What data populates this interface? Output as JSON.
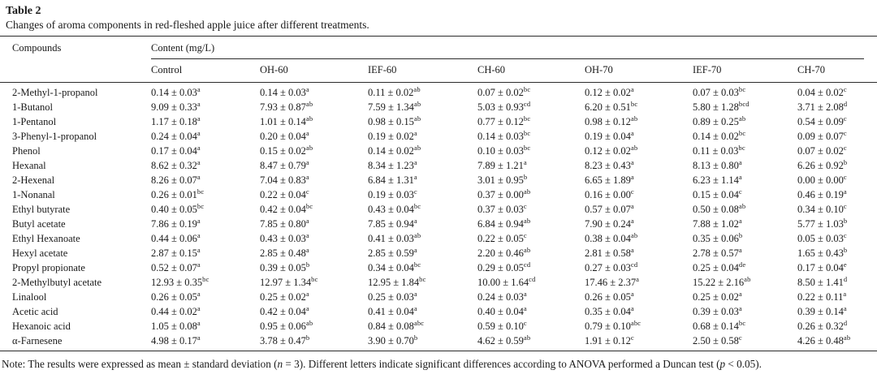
{
  "table": {
    "label": "Table 2",
    "caption": "Changes of aroma components in red-fleshed apple juice after different treatments.",
    "compounds_header": "Compounds",
    "content_header": "Content (mg/L)",
    "columns": [
      "Control",
      "OH-60",
      "IEF-60",
      "CH-60",
      "OH-70",
      "IEF-70",
      "CH-70"
    ],
    "rows": [
      {
        "compound": "2-Methyl-1-propanol",
        "cells": [
          {
            "text": "0.14 ± 0.03",
            "sup": "a"
          },
          {
            "text": "0.14 ± 0.03",
            "sup": "a"
          },
          {
            "text": "0.11 ± 0.02",
            "sup": "ab"
          },
          {
            "text": "0.07 ± 0.02",
            "sup": "bc"
          },
          {
            "text": "0.12 ± 0.02",
            "sup": "a"
          },
          {
            "text": "0.07 ± 0.03",
            "sup": "bc"
          },
          {
            "text": "0.04 ± 0.02",
            "sup": "c"
          }
        ]
      },
      {
        "compound": "1-Butanol",
        "cells": [
          {
            "text": "9.09 ± 0.33",
            "sup": "a"
          },
          {
            "text": "7.93 ± 0.87",
            "sup": "ab"
          },
          {
            "text": "7.59 ± 1.34",
            "sup": "ab"
          },
          {
            "text": "5.03 ± 0.93",
            "sup": "cd"
          },
          {
            "text": "6.20 ± 0.51",
            "sup": "bc"
          },
          {
            "text": "5.80 ± 1.28",
            "sup": "bcd"
          },
          {
            "text": "3.71 ± 2.08",
            "sup": "d"
          }
        ]
      },
      {
        "compound": "1-Pentanol",
        "cells": [
          {
            "text": "1.17 ± 0.18",
            "sup": "a"
          },
          {
            "text": "1.01 ± 0.14",
            "sup": "ab"
          },
          {
            "text": "0.98 ± 0.15",
            "sup": "ab"
          },
          {
            "text": "0.77 ± 0.12",
            "sup": "bc"
          },
          {
            "text": "0.98 ± 0.12",
            "sup": "ab"
          },
          {
            "text": "0.89 ± 0.25",
            "sup": "ab"
          },
          {
            "text": "0.54 ± 0.09",
            "sup": "c"
          }
        ]
      },
      {
        "compound": "3-Phenyl-1-propanol",
        "cells": [
          {
            "text": "0.24 ± 0.04",
            "sup": "a"
          },
          {
            "text": "0.20 ± 0.04",
            "sup": "a"
          },
          {
            "text": "0.19 ± 0.02",
            "sup": "a"
          },
          {
            "text": "0.14 ± 0.03",
            "sup": "bc"
          },
          {
            "text": "0.19 ± 0.04",
            "sup": "a"
          },
          {
            "text": "0.14 ± 0.02",
            "sup": "bc"
          },
          {
            "text": "0.09 ± 0.07",
            "sup": "c"
          }
        ]
      },
      {
        "compound": "Phenol",
        "cells": [
          {
            "text": "0.17 ± 0.04",
            "sup": "a"
          },
          {
            "text": "0.15 ± 0.02",
            "sup": "ab"
          },
          {
            "text": "0.14 ± 0.02",
            "sup": "ab"
          },
          {
            "text": "0.10 ± 0.03",
            "sup": "bc"
          },
          {
            "text": "0.12 ± 0.02",
            "sup": "ab"
          },
          {
            "text": "0.11 ± 0.03",
            "sup": "bc"
          },
          {
            "text": "0.07 ± 0.02",
            "sup": "c"
          }
        ]
      },
      {
        "compound": "Hexanal",
        "cells": [
          {
            "text": "8.62 ± 0.32",
            "sup": "a"
          },
          {
            "text": "8.47 ± 0.79",
            "sup": "a"
          },
          {
            "text": "8.34 ± 1.23",
            "sup": "a"
          },
          {
            "text": "7.89 ± 1.21",
            "sup": "a"
          },
          {
            "text": "8.23 ± 0.43",
            "sup": "a"
          },
          {
            "text": "8.13 ± 0.80",
            "sup": "a"
          },
          {
            "text": "6.26 ± 0.92",
            "sup": "b"
          }
        ]
      },
      {
        "compound": "2-Hexenal",
        "cells": [
          {
            "text": "8.26 ± 0.07",
            "sup": "a"
          },
          {
            "text": "7.04 ± 0.83",
            "sup": "a"
          },
          {
            "text": "6.84 ± 1.31",
            "sup": "a"
          },
          {
            "text": "3.01 ± 0.95",
            "sup": "b"
          },
          {
            "text": "6.65 ± 1.89",
            "sup": "a"
          },
          {
            "text": "6.23 ± 1.14",
            "sup": "a"
          },
          {
            "text": "0.00 ± 0.00",
            "sup": "c"
          }
        ]
      },
      {
        "compound": "1-Nonanal",
        "cells": [
          {
            "text": "0.26 ± 0.01",
            "sup": "bc"
          },
          {
            "text": "0.22 ± 0.04",
            "sup": "c"
          },
          {
            "text": "0.19 ± 0.03",
            "sup": "c"
          },
          {
            "text": "0.37 ± 0.00",
            "sup": "ab"
          },
          {
            "text": "0.16 ± 0.00",
            "sup": "c"
          },
          {
            "text": "0.15 ± 0.04",
            "sup": "c"
          },
          {
            "text": "0.46 ± 0.19",
            "sup": "a"
          }
        ]
      },
      {
        "compound": "Ethyl butyrate",
        "cells": [
          {
            "text": "0.40 ± 0.05",
            "sup": "bc"
          },
          {
            "text": "0.42 ± 0.04",
            "sup": "bc"
          },
          {
            "text": "0.43 ± 0.04",
            "sup": "bc"
          },
          {
            "text": "0.37 ± 0.03",
            "sup": "c"
          },
          {
            "text": "0.57 ± 0.07",
            "sup": "a"
          },
          {
            "text": "0.50 ± 0.08",
            "sup": "ab"
          },
          {
            "text": "0.34 ± 0.10",
            "sup": "c"
          }
        ]
      },
      {
        "compound": "Butyl acetate",
        "cells": [
          {
            "text": "7.86 ± 0.19",
            "sup": "a"
          },
          {
            "text": "7.85 ± 0.80",
            "sup": "a"
          },
          {
            "text": "7.85 ± 0.94",
            "sup": "a"
          },
          {
            "text": "6.84 ± 0.94",
            "sup": "ab"
          },
          {
            "text": "7.90 ± 0.24",
            "sup": "a"
          },
          {
            "text": "7.88 ± 1.02",
            "sup": "a"
          },
          {
            "text": "5.77 ± 1.03",
            "sup": "b"
          }
        ]
      },
      {
        "compound": "Ethyl Hexanoate",
        "cells": [
          {
            "text": "0.44 ± 0.06",
            "sup": "a"
          },
          {
            "text": "0.43 ± 0.03",
            "sup": "a"
          },
          {
            "text": "0.41 ± 0.03",
            "sup": "ab"
          },
          {
            "text": "0.22 ± 0.05",
            "sup": "c"
          },
          {
            "text": "0.38 ± 0.04",
            "sup": "ab"
          },
          {
            "text": "0.35 ± 0.06",
            "sup": "b"
          },
          {
            "text": "0.05 ± 0.03",
            "sup": "c"
          }
        ]
      },
      {
        "compound": "Hexyl acetate",
        "cells": [
          {
            "text": "2.87 ± 0.15",
            "sup": "a"
          },
          {
            "text": "2.85 ± 0.48",
            "sup": "a"
          },
          {
            "text": "2.85 ± 0.59",
            "sup": "a"
          },
          {
            "text": "2.20 ± 0.46",
            "sup": "ab"
          },
          {
            "text": "2.81 ± 0.58",
            "sup": "a"
          },
          {
            "text": "2.78 ± 0.57",
            "sup": "a"
          },
          {
            "text": "1.65 ± 0.43",
            "sup": "b"
          }
        ]
      },
      {
        "compound": "Propyl propionate",
        "cells": [
          {
            "text": "0.52 ± 0.07",
            "sup": "a"
          },
          {
            "text": "0.39 ± 0.05",
            "sup": "b"
          },
          {
            "text": "0.34 ± 0.04",
            "sup": "bc"
          },
          {
            "text": "0.29 ± 0.05",
            "sup": "cd"
          },
          {
            "text": "0.27 ± 0.03",
            "sup": "cd"
          },
          {
            "text": "0.25 ± 0.04",
            "sup": "de"
          },
          {
            "text": "0.17 ± 0.04",
            "sup": "e"
          }
        ]
      },
      {
        "compound": "2-Methylbutyl acetate",
        "cells": [
          {
            "text": "12.93 ± 0.35",
            "sup": "bc"
          },
          {
            "text": "12.97 ± 1.34",
            "sup": "bc"
          },
          {
            "text": "12.95 ± 1.84",
            "sup": "bc"
          },
          {
            "text": "10.00 ± 1.64",
            "sup": "cd"
          },
          {
            "text": "17.46 ± 2.37",
            "sup": "a"
          },
          {
            "text": "15.22 ± 2.16",
            "sup": "ab"
          },
          {
            "text": "8.50 ± 1.41",
            "sup": "d"
          }
        ]
      },
      {
        "compound": "Linalool",
        "cells": [
          {
            "text": "0.26 ± 0.05",
            "sup": "a"
          },
          {
            "text": "0.25 ± 0.02",
            "sup": "a"
          },
          {
            "text": "0.25 ± 0.03",
            "sup": "a"
          },
          {
            "text": "0.24 ± 0.03",
            "sup": "a"
          },
          {
            "text": "0.26 ± 0.05",
            "sup": "a"
          },
          {
            "text": "0.25 ± 0.02",
            "sup": "a"
          },
          {
            "text": "0.22 ± 0.11",
            "sup": "a"
          }
        ]
      },
      {
        "compound": "Acetic acid",
        "cells": [
          {
            "text": "0.44 ± 0.02",
            "sup": "a"
          },
          {
            "text": "0.42 ± 0.04",
            "sup": "a"
          },
          {
            "text": "0.41 ± 0.04",
            "sup": "a"
          },
          {
            "text": "0.40 ± 0.04",
            "sup": "a"
          },
          {
            "text": "0.35 ± 0.04",
            "sup": "a"
          },
          {
            "text": "0.39 ± 0.03",
            "sup": "a"
          },
          {
            "text": "0.39 ± 0.14",
            "sup": "a"
          }
        ]
      },
      {
        "compound": "Hexanoic acid",
        "cells": [
          {
            "text": "1.05 ± 0.08",
            "sup": "a"
          },
          {
            "text": "0.95 ± 0.06",
            "sup": "ab"
          },
          {
            "text": "0.84 ± 0.08",
            "sup": "abc"
          },
          {
            "text": "0.59 ± 0.10",
            "sup": "c"
          },
          {
            "text": "0.79 ± 0.10",
            "sup": "abc"
          },
          {
            "text": "0.68 ± 0.14",
            "sup": "bc"
          },
          {
            "text": "0.26 ± 0.32",
            "sup": "d"
          }
        ]
      },
      {
        "compound": "α-Farnesene",
        "cells": [
          {
            "text": "4.98 ± 0.17",
            "sup": "a"
          },
          {
            "text": "3.78 ± 0.47",
            "sup": "b"
          },
          {
            "text": "3.90 ± 0.70",
            "sup": "b"
          },
          {
            "text": "4.62 ± 0.59",
            "sup": "ab"
          },
          {
            "text": "1.91 ± 0.12",
            "sup": "c"
          },
          {
            "text": "2.50 ± 0.58",
            "sup": "c"
          },
          {
            "text": "4.26 ± 0.48",
            "sup": "ab"
          }
        ]
      }
    ],
    "note": {
      "part1": "Note: The results were expressed as mean ± standard deviation (",
      "italic1": "n",
      "part2": " = 3). Different letters indicate significant differences according to ANOVA performed a Duncan test (",
      "italic2": "p",
      "part3": " < 0.05)."
    }
  }
}
